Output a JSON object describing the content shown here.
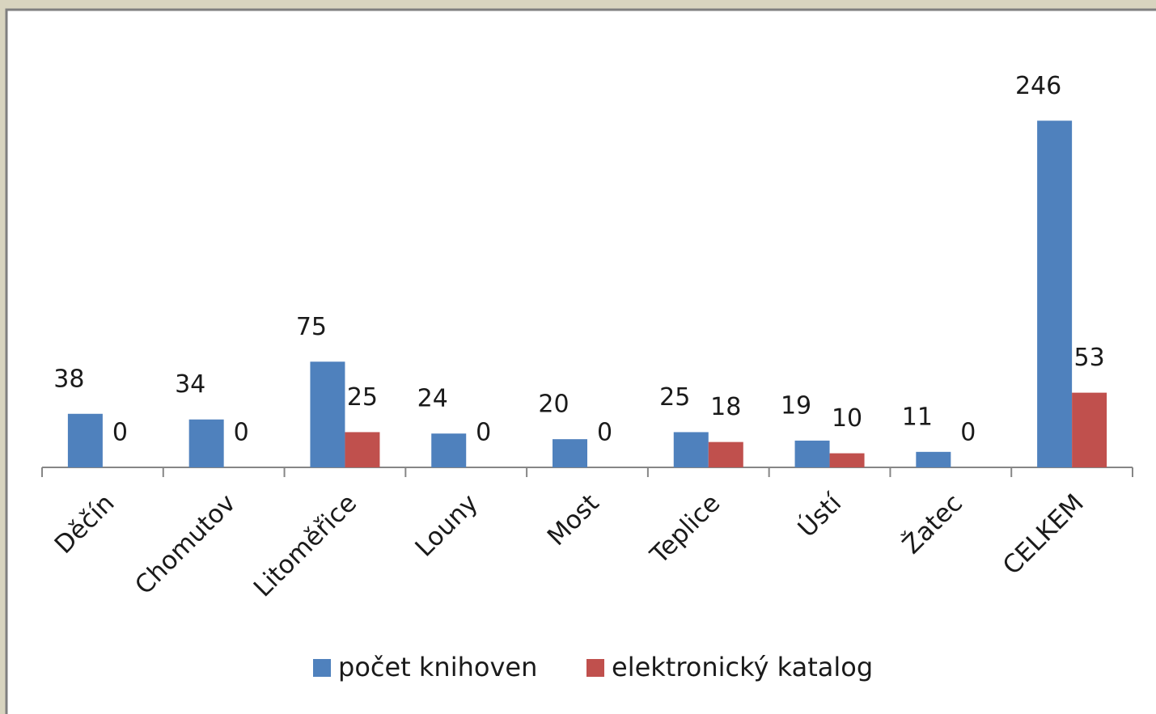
{
  "chart_data": {
    "type": "bar",
    "categories": [
      "Děčín",
      "Chomutov",
      "Litoměřice",
      "Louny",
      "Most",
      "Teplice",
      "Ústí",
      "Žatec",
      "CELKEM"
    ],
    "series": [
      {
        "name": "počet knihoven",
        "color": "#4f81bd",
        "values": [
          38,
          34,
          75,
          24,
          20,
          25,
          19,
          11,
          246
        ]
      },
      {
        "name": "elektronický katalog",
        "color": "#c0504d",
        "values": [
          0,
          0,
          25,
          0,
          0,
          18,
          10,
          0,
          53
        ]
      }
    ],
    "ylim": [
      0,
      280
    ],
    "legend": "bottom"
  }
}
